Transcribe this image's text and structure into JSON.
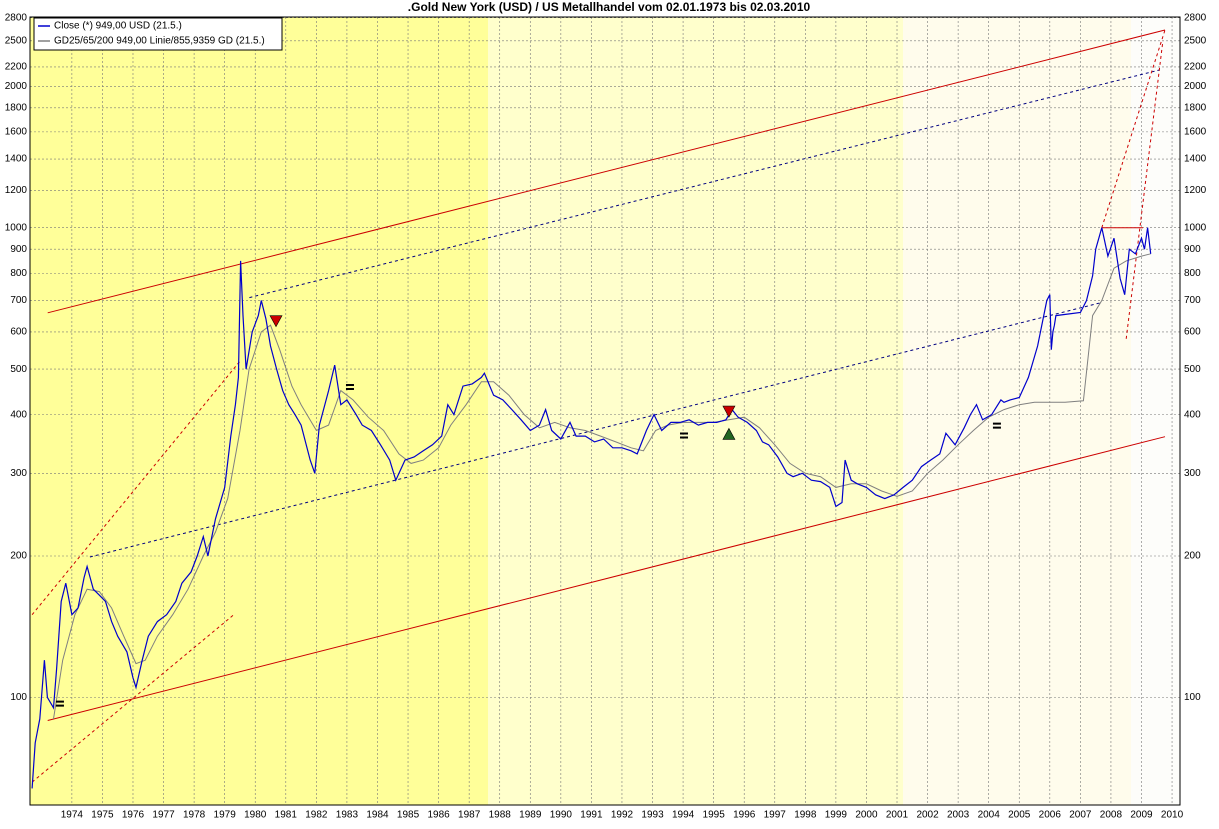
{
  "chart_data": {
    "type": "line",
    "title": ".Gold New York (USD) / US Metallhandel vom 02.01.1973 bis 02.03.2010",
    "log_scale": true,
    "grid": true,
    "legend": "top-left",
    "xlim": [
      1973.13,
      2010.76
    ],
    "ylim": [
      59,
      2810
    ],
    "xticks": [
      {
        "value": 1974.5,
        "label": "1974"
      },
      {
        "value": 1975.5,
        "label": "1975"
      },
      {
        "value": 1976.5,
        "label": "1976"
      },
      {
        "value": 1977.5,
        "label": "1977"
      },
      {
        "value": 1978.5,
        "label": "1978"
      },
      {
        "value": 1979.5,
        "label": "1979"
      },
      {
        "value": 1980.5,
        "label": "1980"
      },
      {
        "value": 1981.5,
        "label": "1981"
      },
      {
        "value": 1982.5,
        "label": "1982"
      },
      {
        "value": 1983.5,
        "label": "1983"
      },
      {
        "value": 1984.5,
        "label": "1984"
      },
      {
        "value": 1985.5,
        "label": "1985"
      },
      {
        "value": 1986.5,
        "label": "1986"
      },
      {
        "value": 1987.5,
        "label": "1987"
      },
      {
        "value": 1988.5,
        "label": "1988"
      },
      {
        "value": 1989.5,
        "label": "1989"
      },
      {
        "value": 1990.5,
        "label": "1990"
      },
      {
        "value": 1991.5,
        "label": "1991"
      },
      {
        "value": 1992.5,
        "label": "1992"
      },
      {
        "value": 1993.5,
        "label": "1993"
      },
      {
        "value": 1994.5,
        "label": "1994"
      },
      {
        "value": 1995.5,
        "label": "1995"
      },
      {
        "value": 1996.5,
        "label": "1996"
      },
      {
        "value": 1997.5,
        "label": "1997"
      },
      {
        "value": 1998.5,
        "label": "1998"
      },
      {
        "value": 1999.5,
        "label": "1999"
      },
      {
        "value": 2000.5,
        "label": "2000"
      },
      {
        "value": 2001.5,
        "label": "2001"
      },
      {
        "value": 2002.5,
        "label": "2002"
      },
      {
        "value": 2003.5,
        "label": "2003"
      },
      {
        "value": 2004.5,
        "label": "2004"
      },
      {
        "value": 2005.5,
        "label": "2005"
      },
      {
        "value": 2006.5,
        "label": "2006"
      },
      {
        "value": 2007.5,
        "label": "2007"
      },
      {
        "value": 2008.5,
        "label": "2008"
      },
      {
        "value": 2009.5,
        "label": "2009"
      },
      {
        "value": 2010.5,
        "label": "2010"
      }
    ],
    "yticks": [
      100,
      200,
      300,
      400,
      500,
      600,
      700,
      800,
      900,
      1000,
      1200,
      1400,
      1600,
      1800,
      2000,
      2200,
      2500,
      2800
    ],
    "series": [
      {
        "name": "Close (*) 949,00 USD (21.5.)",
        "color": "#0000cc",
        "x": [
          1973.2,
          1973.3,
          1973.45,
          1973.6,
          1973.7,
          1973.9,
          1974.0,
          1974.15,
          1974.3,
          1974.5,
          1974.7,
          1974.9,
          1975.0,
          1975.2,
          1975.4,
          1975.6,
          1975.8,
          1976.0,
          1976.3,
          1976.5,
          1976.6,
          1976.8,
          1977.0,
          1977.3,
          1977.6,
          1977.9,
          1978.1,
          1978.4,
          1978.6,
          1978.8,
          1978.95,
          1979.2,
          1979.5,
          1979.7,
          1979.85,
          1979.95,
          1980.02,
          1980.1,
          1980.2,
          1980.4,
          1980.6,
          1980.7,
          1980.85,
          1981.0,
          1981.2,
          1981.4,
          1981.6,
          1981.8,
          1982.0,
          1982.3,
          1982.45,
          1982.6,
          1982.9,
          1983.1,
          1983.3,
          1983.5,
          1983.8,
          1984.0,
          1984.3,
          1984.6,
          1984.9,
          1985.1,
          1985.4,
          1985.7,
          1986.0,
          1986.3,
          1986.6,
          1986.8,
          1987.0,
          1987.3,
          1987.6,
          1987.9,
          1988.0,
          1988.3,
          1988.6,
          1988.9,
          1989.2,
          1989.5,
          1989.8,
          1990.0,
          1990.2,
          1990.5,
          1990.8,
          1991.0,
          1991.3,
          1991.6,
          1991.9,
          1992.2,
          1992.5,
          1992.8,
          1993.0,
          1993.3,
          1993.55,
          1993.8,
          1994.1,
          1994.4,
          1994.7,
          1995.0,
          1995.3,
          1995.6,
          1995.9,
          1996.1,
          1996.3,
          1996.6,
          1996.9,
          1997.1,
          1997.3,
          1997.6,
          1997.9,
          1998.1,
          1998.4,
          1998.7,
          1999.0,
          1999.3,
          1999.5,
          1999.7,
          1999.8,
          2000.0,
          2000.2,
          2000.5,
          2000.8,
          2001.1,
          2001.4,
          2001.7,
          2002.0,
          2002.3,
          2002.6,
          2002.9,
          2003.1,
          2003.4,
          2003.7,
          2003.9,
          2004.1,
          2004.3,
          2004.6,
          2004.9,
          2005.0,
          2005.2,
          2005.5,
          2005.8,
          2006.1,
          2006.4,
          2006.5,
          2006.55,
          2006.6,
          2006.65,
          2006.7,
          2007.5,
          2007.7,
          2007.9,
          2008.0,
          2008.2,
          2008.4,
          2008.6,
          2008.8,
          2008.95,
          2009.1,
          2009.3,
          2009.5,
          2009.6,
          2009.7,
          2009.8
        ],
        "values": [
          64,
          80,
          90,
          120,
          100,
          95,
          115,
          160,
          175,
          150,
          155,
          180,
          190,
          170,
          165,
          160,
          145,
          135,
          125,
          110,
          105,
          120,
          135,
          145,
          150,
          160,
          175,
          185,
          200,
          220,
          200,
          240,
          280,
          360,
          420,
          480,
          850,
          650,
          500,
          600,
          650,
          700,
          640,
          560,
          500,
          450,
          420,
          400,
          380,
          320,
          300,
          380,
          450,
          510,
          420,
          430,
          400,
          380,
          370,
          345,
          320,
          290,
          320,
          325,
          335,
          345,
          360,
          420,
          400,
          460,
          465,
          480,
          490,
          440,
          430,
          410,
          390,
          370,
          380,
          410,
          370,
          355,
          385,
          360,
          360,
          350,
          355,
          340,
          340,
          335,
          330,
          370,
          400,
          370,
          385,
          385,
          390,
          380,
          385,
          385,
          390,
          410,
          395,
          385,
          370,
          350,
          345,
          325,
          300,
          295,
          300,
          290,
          288,
          280,
          255,
          260,
          320,
          290,
          285,
          280,
          270,
          265,
          270,
          280,
          290,
          310,
          320,
          330,
          365,
          345,
          375,
          400,
          420,
          390,
          400,
          430,
          425,
          430,
          435,
          480,
          560,
          700,
          720,
          550,
          600,
          620,
          650,
          660,
          700,
          790,
          900,
          1000,
          870,
          950,
          780,
          720,
          900,
          880,
          950,
          900,
          1000,
          880
        ]
      },
      {
        "name": "GD25/65/200 949,00 Linie/855,9359 GD (21.5.)",
        "color": "#808080",
        "x": [
          1973.9,
          1974.2,
          1974.6,
          1975.0,
          1975.4,
          1975.8,
          1976.2,
          1976.6,
          1976.9,
          1977.3,
          1977.8,
          1978.3,
          1978.8,
          1979.2,
          1979.6,
          1980.0,
          1980.3,
          1980.7,
          1981.0,
          1981.3,
          1981.7,
          1982.0,
          1982.5,
          1982.9,
          1983.3,
          1983.7,
          1984.2,
          1984.7,
          1985.2,
          1985.6,
          1986.0,
          1986.5,
          1986.9,
          1987.4,
          1987.9,
          1988.3,
          1988.8,
          1989.3,
          1989.8,
          1990.3,
          1990.8,
          1991.3,
          1991.8,
          1992.3,
          1992.8,
          1993.2,
          1993.6,
          1994.0,
          1994.5,
          1995.0,
          1995.5,
          1996.0,
          1996.5,
          1997.0,
          1997.5,
          1998.0,
          1998.5,
          1999.0,
          1999.5,
          2000.0,
          2000.5,
          2001.0,
          2001.5,
          2002.0,
          2002.5,
          2003.0,
          2003.5,
          2004.0,
          2004.5,
          2005.0,
          2005.5,
          2006.0,
          2007.0,
          2007.6,
          2007.9,
          2008.2,
          2008.6,
          2009.0,
          2009.5,
          2009.8
        ],
        "values": [
          90,
          120,
          150,
          170,
          168,
          155,
          135,
          118,
          120,
          135,
          150,
          170,
          200,
          225,
          265,
          370,
          500,
          600,
          620,
          550,
          460,
          420,
          370,
          380,
          450,
          430,
          395,
          370,
          330,
          315,
          320,
          340,
          380,
          420,
          470,
          470,
          440,
          400,
          375,
          385,
          375,
          370,
          360,
          350,
          340,
          335,
          370,
          380,
          385,
          385,
          385,
          390,
          395,
          375,
          345,
          315,
          300,
          295,
          280,
          285,
          285,
          275,
          268,
          275,
          300,
          320,
          345,
          370,
          395,
          410,
          420,
          425,
          425,
          428,
          650,
          700,
          820,
          850,
          870,
          880
        ]
      }
    ],
    "trend_lines": [
      {
        "x": [
          1973.71,
          2010.27
        ],
        "values": [
          659,
          2637
        ],
        "color": "#cc0000",
        "dashed": false
      },
      {
        "x": [
          1973.71,
          2010.27
        ],
        "values": [
          89.3,
          359
        ],
        "color": "#cc0000",
        "dashed": false
      },
      {
        "x": [
          1980.31,
          2010.1
        ],
        "values": [
          710,
          2168
        ],
        "color": "#000080",
        "dashed": true
      },
      {
        "x": [
          1975.09,
          2008.16
        ],
        "values": [
          199,
          692
        ],
        "color": "#000080",
        "dashed": true
      },
      {
        "x": [
          1973.2,
          1980.0
        ],
        "values": [
          150,
          520
        ],
        "color": "#cc0000",
        "dashed": true
      },
      {
        "x": [
          1973.2,
          1979.8
        ],
        "values": [
          66,
          150
        ],
        "color": "#cc0000",
        "dashed": true
      },
      {
        "x": [
          2008.2,
          2009.55
        ],
        "values": [
          1000,
          1000
        ],
        "color": "#cc0000",
        "dashed": false
      },
      {
        "x": [
          2008.2,
          2010.27
        ],
        "values": [
          1000,
          2637
        ],
        "color": "#cc0000",
        "dashed": true
      },
      {
        "x": [
          2009.0,
          2010.2
        ],
        "values": [
          580,
          2500
        ],
        "color": "#cc0000",
        "dashed": true
      }
    ],
    "markers": [
      {
        "x": 1974.11,
        "value": 97,
        "shape": "equal",
        "color": "#000000"
      },
      {
        "x": 1983.6,
        "value": 458,
        "shape": "equal",
        "color": "#000000"
      },
      {
        "x": 1994.53,
        "value": 361,
        "shape": "equal",
        "color": "#000000"
      },
      {
        "x": 2004.77,
        "value": 379,
        "shape": "equal",
        "color": "#000000"
      },
      {
        "x": 1981.18,
        "value": 631,
        "shape": "down",
        "color": "#cc0000"
      },
      {
        "x": 1996.0,
        "value": 405,
        "shape": "down",
        "color": "#cc0000"
      },
      {
        "x": 1996.0,
        "value": 363,
        "shape": "up",
        "color": "#226622"
      }
    ]
  }
}
